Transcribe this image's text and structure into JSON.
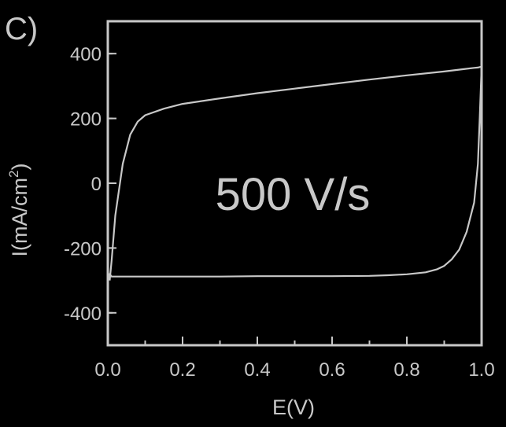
{
  "panel_label": "C)",
  "colors": {
    "background": "#000000",
    "foreground": "#c8c8c8"
  },
  "chart_data": {
    "type": "line",
    "title": "",
    "xlabel": "E(V)",
    "ylabel_main": "I(mA/cm",
    "ylabel_sup": "2",
    "ylabel_tail": ")",
    "annotation": "500 V/s",
    "xlim": [
      0.0,
      1.0
    ],
    "ylim": [
      -500,
      500
    ],
    "x_ticks": [
      0.0,
      0.2,
      0.4,
      0.6,
      0.8,
      1.0
    ],
    "x_tick_labels": [
      "0.0",
      "0.2",
      "0.4",
      "0.6",
      "0.8",
      "1.0"
    ],
    "y_ticks": [
      -400,
      -200,
      0,
      200,
      400
    ],
    "y_tick_labels": [
      "-400",
      "-200",
      "0",
      "200",
      "400"
    ],
    "grid": false,
    "series": [
      {
        "x": [
          0.005,
          0.01,
          0.02,
          0.04,
          0.06,
          0.08,
          0.1,
          0.15,
          0.2,
          0.3,
          0.4,
          0.5,
          0.6,
          0.7,
          0.8,
          0.9,
          0.95,
          0.98,
          0.99,
          1.0,
          0.995,
          0.99,
          0.98,
          0.96,
          0.94,
          0.92,
          0.9,
          0.88,
          0.85,
          0.8,
          0.75,
          0.7,
          0.6,
          0.5,
          0.4,
          0.3,
          0.2,
          0.1,
          0.03,
          0.01,
          0.005,
          0.005
        ],
        "y": [
          -300,
          -240,
          -100,
          60,
          150,
          190,
          210,
          230,
          245,
          262,
          278,
          292,
          306,
          320,
          333,
          345,
          352,
          356,
          357,
          360,
          200,
          60,
          -60,
          -150,
          -205,
          -235,
          -255,
          -266,
          -275,
          -281,
          -284,
          -286,
          -287,
          -287,
          -287,
          -288,
          -288,
          -288,
          -288,
          -288,
          -280,
          -300
        ]
      }
    ]
  }
}
